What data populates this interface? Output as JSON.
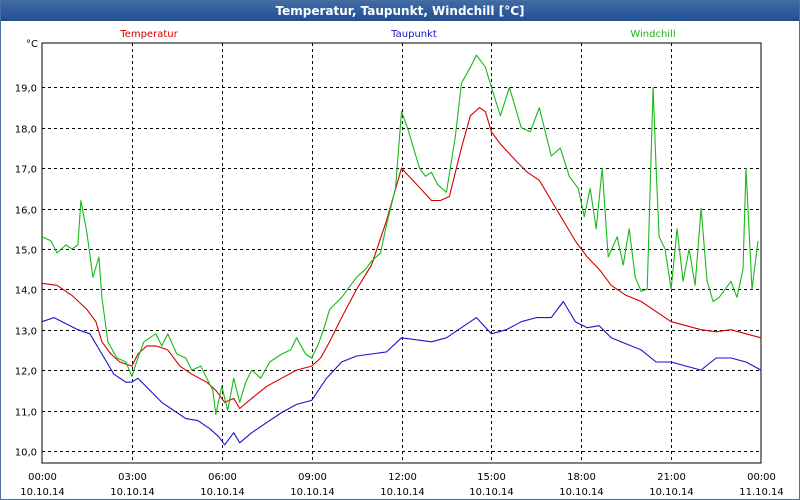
{
  "window": {
    "title": "Temperatur, Taupunkt, Windchill [°C]"
  },
  "chart_data": {
    "type": "line",
    "title": "Temperatur, Taupunkt, Windchill [°C]",
    "ylabel": "°C",
    "xlabel": "",
    "ylim": [
      9.7,
      20.1
    ],
    "xlim": [
      0,
      24
    ],
    "grid": true,
    "legend": "top",
    "x_tick_labels": [
      {
        "time": "00:00",
        "date": "10.10.14"
      },
      {
        "time": "03:00",
        "date": "10.10.14"
      },
      {
        "time": "06:00",
        "date": "10.10.14"
      },
      {
        "time": "09:00",
        "date": "10.10.14"
      },
      {
        "time": "12:00",
        "date": "10.10.14"
      },
      {
        "time": "15:00",
        "date": "10.10.14"
      },
      {
        "time": "18:00",
        "date": "10.10.14"
      },
      {
        "time": "21:00",
        "date": "10.10.14"
      },
      {
        "time": "00:00",
        "date": "11.10.14"
      }
    ],
    "y_tick_labels": [
      "10,0",
      "11,0",
      "12,0",
      "13,0",
      "14,0",
      "15,0",
      "16,0",
      "17,0",
      "18,0",
      "19,0"
    ],
    "y_ticks": [
      10,
      11,
      12,
      13,
      14,
      15,
      16,
      17,
      18,
      19
    ],
    "series": [
      {
        "name": "Temperatur",
        "color": "#d40000",
        "points": [
          [
            0,
            14.15
          ],
          [
            0.5,
            14.1
          ],
          [
            1.0,
            13.85
          ],
          [
            1.5,
            13.5
          ],
          [
            1.8,
            13.2
          ],
          [
            2.0,
            12.7
          ],
          [
            2.3,
            12.4
          ],
          [
            2.6,
            12.2
          ],
          [
            3.0,
            12.1
          ],
          [
            3.2,
            12.4
          ],
          [
            3.5,
            12.6
          ],
          [
            3.8,
            12.6
          ],
          [
            4.2,
            12.5
          ],
          [
            4.6,
            12.1
          ],
          [
            5.0,
            11.9
          ],
          [
            5.5,
            11.7
          ],
          [
            5.8,
            11.5
          ],
          [
            6.1,
            11.2
          ],
          [
            6.4,
            11.3
          ],
          [
            6.6,
            11.05
          ],
          [
            7.0,
            11.3
          ],
          [
            7.5,
            11.6
          ],
          [
            8.0,
            11.8
          ],
          [
            8.5,
            12.0
          ],
          [
            9.0,
            12.1
          ],
          [
            9.3,
            12.3
          ],
          [
            9.6,
            12.7
          ],
          [
            10.0,
            13.3
          ],
          [
            10.5,
            14.0
          ],
          [
            11.0,
            14.6
          ],
          [
            11.5,
            15.7
          ],
          [
            12.0,
            17.0
          ],
          [
            12.5,
            16.6
          ],
          [
            13.0,
            16.2
          ],
          [
            13.3,
            16.2
          ],
          [
            13.6,
            16.3
          ],
          [
            14.0,
            17.5
          ],
          [
            14.3,
            18.3
          ],
          [
            14.6,
            18.5
          ],
          [
            14.8,
            18.4
          ],
          [
            15.0,
            17.9
          ],
          [
            15.3,
            17.6
          ],
          [
            15.8,
            17.2
          ],
          [
            16.2,
            16.9
          ],
          [
            16.6,
            16.7
          ],
          [
            17.0,
            16.2
          ],
          [
            17.4,
            15.7
          ],
          [
            17.8,
            15.2
          ],
          [
            18.2,
            14.8
          ],
          [
            18.6,
            14.5
          ],
          [
            19.0,
            14.1
          ],
          [
            19.5,
            13.85
          ],
          [
            20.0,
            13.7
          ],
          [
            20.5,
            13.45
          ],
          [
            21.0,
            13.2
          ],
          [
            21.5,
            13.1
          ],
          [
            22.0,
            13.0
          ],
          [
            22.5,
            12.95
          ],
          [
            23.0,
            13.0
          ],
          [
            23.5,
            12.9
          ],
          [
            24.0,
            12.8
          ]
        ]
      },
      {
        "name": "Taupunkt",
        "color": "#1a14c8",
        "points": [
          [
            0,
            13.2
          ],
          [
            0.4,
            13.3
          ],
          [
            0.8,
            13.15
          ],
          [
            1.2,
            13.0
          ],
          [
            1.6,
            12.9
          ],
          [
            2.0,
            12.4
          ],
          [
            2.4,
            11.9
          ],
          [
            2.8,
            11.7
          ],
          [
            3.0,
            11.7
          ],
          [
            3.2,
            11.8
          ],
          [
            3.6,
            11.5
          ],
          [
            4.0,
            11.2
          ],
          [
            4.4,
            11.0
          ],
          [
            4.8,
            10.8
          ],
          [
            5.2,
            10.75
          ],
          [
            5.6,
            10.55
          ],
          [
            5.9,
            10.35
          ],
          [
            6.1,
            10.15
          ],
          [
            6.4,
            10.45
          ],
          [
            6.6,
            10.2
          ],
          [
            7.0,
            10.45
          ],
          [
            7.5,
            10.7
          ],
          [
            8.0,
            10.95
          ],
          [
            8.5,
            11.15
          ],
          [
            9.0,
            11.25
          ],
          [
            9.5,
            11.8
          ],
          [
            10.0,
            12.2
          ],
          [
            10.5,
            12.35
          ],
          [
            11.0,
            12.4
          ],
          [
            11.5,
            12.45
          ],
          [
            12.0,
            12.8
          ],
          [
            12.5,
            12.75
          ],
          [
            13.0,
            12.7
          ],
          [
            13.5,
            12.8
          ],
          [
            14.0,
            13.05
          ],
          [
            14.5,
            13.3
          ],
          [
            15.0,
            12.9
          ],
          [
            15.5,
            13.0
          ],
          [
            16.0,
            13.2
          ],
          [
            16.5,
            13.3
          ],
          [
            17.0,
            13.3
          ],
          [
            17.4,
            13.7
          ],
          [
            17.8,
            13.2
          ],
          [
            18.2,
            13.05
          ],
          [
            18.6,
            13.1
          ],
          [
            19.0,
            12.8
          ],
          [
            19.5,
            12.65
          ],
          [
            20.0,
            12.5
          ],
          [
            20.5,
            12.2
          ],
          [
            21.0,
            12.2
          ],
          [
            21.5,
            12.1
          ],
          [
            22.0,
            12.0
          ],
          [
            22.5,
            12.3
          ],
          [
            23.0,
            12.3
          ],
          [
            23.5,
            12.2
          ],
          [
            24.0,
            12.0
          ]
        ]
      },
      {
        "name": "Windchill",
        "color": "#19b819",
        "points": [
          [
            0,
            15.3
          ],
          [
            0.3,
            15.2
          ],
          [
            0.5,
            14.9
          ],
          [
            0.8,
            15.1
          ],
          [
            1.0,
            15.0
          ],
          [
            1.2,
            15.1
          ],
          [
            1.3,
            16.2
          ],
          [
            1.5,
            15.4
          ],
          [
            1.7,
            14.3
          ],
          [
            1.9,
            14.8
          ],
          [
            2.0,
            13.8
          ],
          [
            2.2,
            12.7
          ],
          [
            2.5,
            12.3
          ],
          [
            2.8,
            12.2
          ],
          [
            3.0,
            11.85
          ],
          [
            3.2,
            12.3
          ],
          [
            3.4,
            12.7
          ],
          [
            3.6,
            12.8
          ],
          [
            3.8,
            12.9
          ],
          [
            4.0,
            12.6
          ],
          [
            4.2,
            12.9
          ],
          [
            4.5,
            12.4
          ],
          [
            4.8,
            12.3
          ],
          [
            5.0,
            12.0
          ],
          [
            5.3,
            12.1
          ],
          [
            5.5,
            11.8
          ],
          [
            5.7,
            11.5
          ],
          [
            5.8,
            10.9
          ],
          [
            6.0,
            11.6
          ],
          [
            6.2,
            11.0
          ],
          [
            6.4,
            11.8
          ],
          [
            6.6,
            11.2
          ],
          [
            6.8,
            11.7
          ],
          [
            7.0,
            12.0
          ],
          [
            7.3,
            11.8
          ],
          [
            7.6,
            12.2
          ],
          [
            8.0,
            12.4
          ],
          [
            8.3,
            12.5
          ],
          [
            8.5,
            12.8
          ],
          [
            8.8,
            12.4
          ],
          [
            9.0,
            12.3
          ],
          [
            9.2,
            12.6
          ],
          [
            9.4,
            13.0
          ],
          [
            9.6,
            13.5
          ],
          [
            10.0,
            13.8
          ],
          [
            10.5,
            14.3
          ],
          [
            10.8,
            14.5
          ],
          [
            11.0,
            14.7
          ],
          [
            11.3,
            14.9
          ],
          [
            11.5,
            15.6
          ],
          [
            11.8,
            16.5
          ],
          [
            12.0,
            18.4
          ],
          [
            12.2,
            18.0
          ],
          [
            12.4,
            17.5
          ],
          [
            12.6,
            17.0
          ],
          [
            12.8,
            16.8
          ],
          [
            13.0,
            16.9
          ],
          [
            13.2,
            16.6
          ],
          [
            13.5,
            16.4
          ],
          [
            13.8,
            17.8
          ],
          [
            14.0,
            19.1
          ],
          [
            14.3,
            19.5
          ],
          [
            14.5,
            19.8
          ],
          [
            14.8,
            19.5
          ],
          [
            15.0,
            19.0
          ],
          [
            15.3,
            18.3
          ],
          [
            15.6,
            19.0
          ],
          [
            16.0,
            18.0
          ],
          [
            16.3,
            17.9
          ],
          [
            16.6,
            18.5
          ],
          [
            17.0,
            17.3
          ],
          [
            17.3,
            17.5
          ],
          [
            17.6,
            16.8
          ],
          [
            17.9,
            16.5
          ],
          [
            18.1,
            15.8
          ],
          [
            18.3,
            16.5
          ],
          [
            18.5,
            15.5
          ],
          [
            18.7,
            17.0
          ],
          [
            18.9,
            14.8
          ],
          [
            19.2,
            15.3
          ],
          [
            19.4,
            14.6
          ],
          [
            19.6,
            15.5
          ],
          [
            19.8,
            14.3
          ],
          [
            20.0,
            13.95
          ],
          [
            20.2,
            14.0
          ],
          [
            20.4,
            19.0
          ],
          [
            20.5,
            17.0
          ],
          [
            20.6,
            15.3
          ],
          [
            20.8,
            15.0
          ],
          [
            21.0,
            14.0
          ],
          [
            21.2,
            15.5
          ],
          [
            21.4,
            14.2
          ],
          [
            21.6,
            15.0
          ],
          [
            21.8,
            14.1
          ],
          [
            22.0,
            16.0
          ],
          [
            22.2,
            14.2
          ],
          [
            22.4,
            13.7
          ],
          [
            22.6,
            13.8
          ],
          [
            22.8,
            14.0
          ],
          [
            23.0,
            14.2
          ],
          [
            23.2,
            13.8
          ],
          [
            23.4,
            14.5
          ],
          [
            23.5,
            17.0
          ],
          [
            23.7,
            14.0
          ],
          [
            23.9,
            15.2
          ]
        ]
      }
    ]
  }
}
